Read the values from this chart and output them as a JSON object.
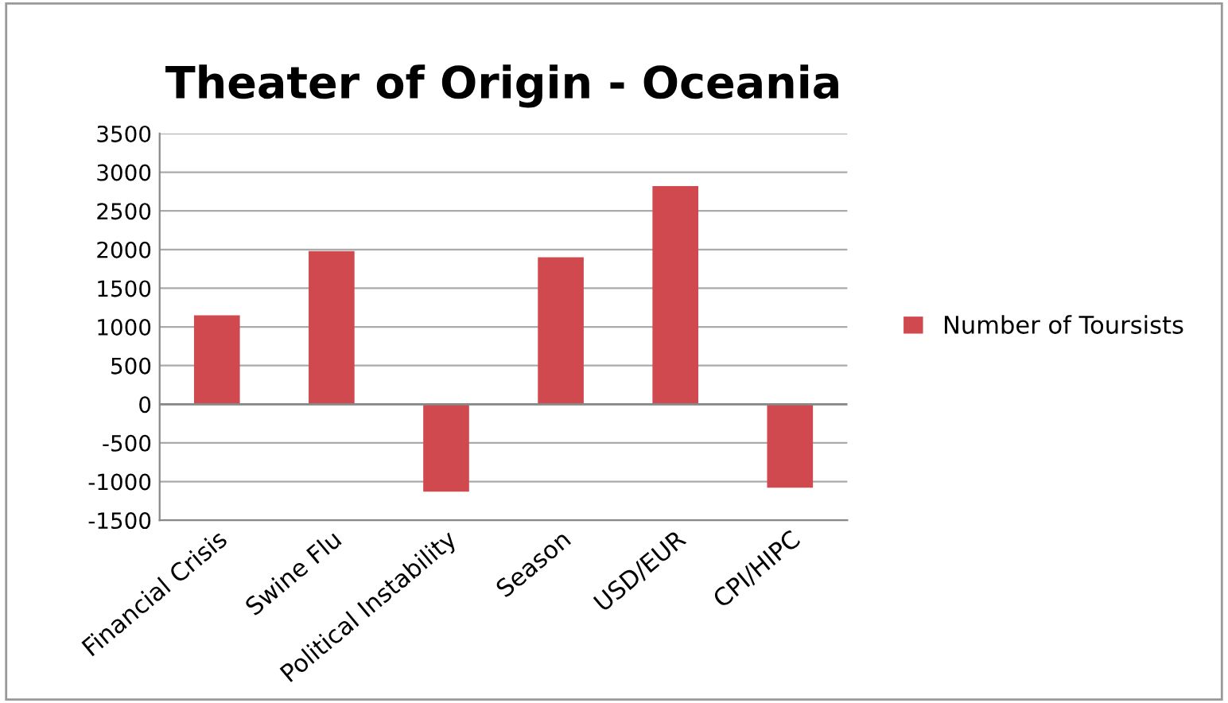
{
  "chart_data": {
    "type": "bar",
    "title": "Theater of Origin - Oceania",
    "categories": [
      "Financial Crisis",
      "Swine Flu",
      "Political Instability",
      "Season",
      "USD/EUR",
      "CPI/HIPC"
    ],
    "series": [
      {
        "name": "Number of Toursists",
        "color": "#d0494f",
        "values": [
          1150,
          1980,
          -1130,
          1900,
          2820,
          -1080
        ]
      }
    ],
    "ylim": [
      -1500,
      3500
    ],
    "yticks": [
      -1500,
      -1000,
      -500,
      0,
      500,
      1000,
      1500,
      2000,
      2500,
      3000,
      3500
    ],
    "grid": "y",
    "legend": "right"
  }
}
